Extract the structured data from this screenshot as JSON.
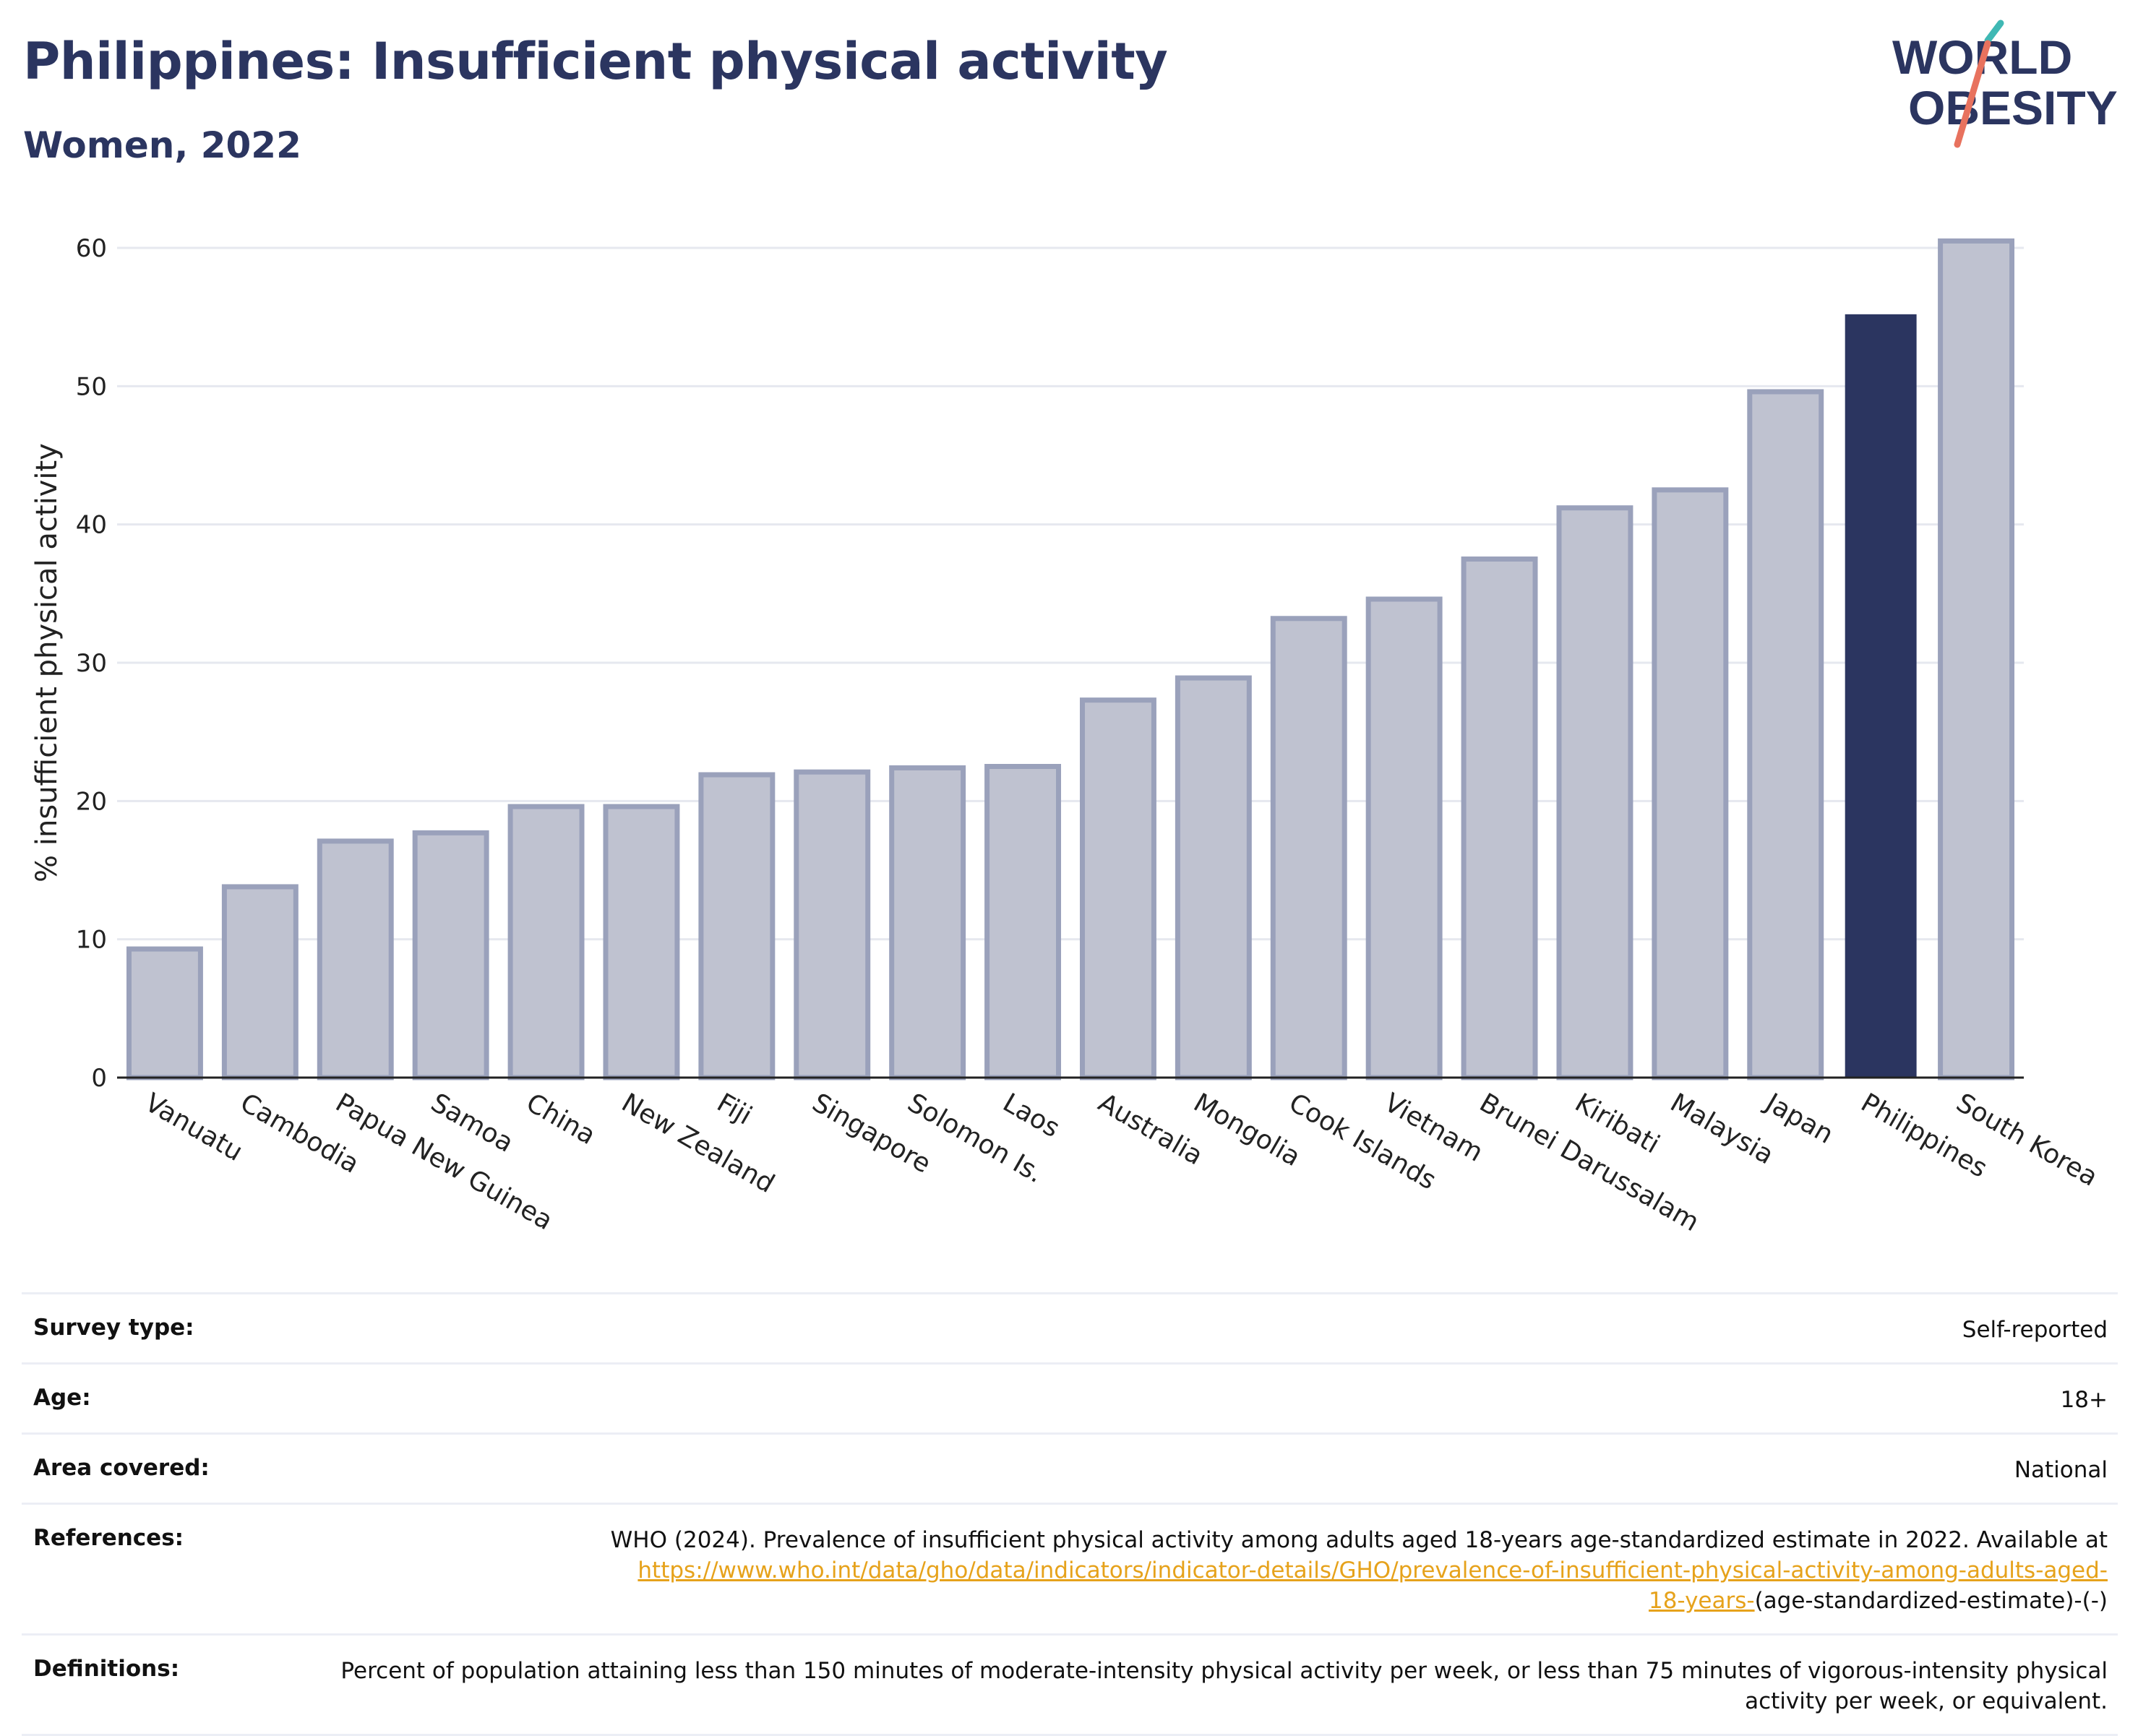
{
  "header": {
    "title": "Philippines: Insufficient physical activity",
    "subtitle": "Women, 2022"
  },
  "logo": {
    "line1": "WORLD",
    "line2": "OBESITY",
    "accent_teal": "#3fb8b4",
    "accent_coral": "#e8725e"
  },
  "colors": {
    "bar_default_fill": "#bfc2d0",
    "bar_default_stroke": "#9aa1bb",
    "bar_highlight": "#2b3560",
    "grid": "#e6e8ef",
    "axis": "#222222"
  },
  "chart_data": {
    "type": "bar",
    "ylabel": "% insufficient physical activity",
    "ylim": [
      0,
      62
    ],
    "yticks": [
      0,
      10,
      20,
      30,
      40,
      50,
      60
    ],
    "grid": true,
    "highlight": "Philippines",
    "categories": [
      "Vanuatu",
      "Cambodia",
      "Papua New Guinea",
      "Samoa",
      "China",
      "New Zealand",
      "Fiji",
      "Singapore",
      "Solomon Is.",
      "Laos",
      "Australia",
      "Mongolia",
      "Cook Islands",
      "Vietnam",
      "Brunei Darussalam",
      "Kiribati",
      "Malaysia",
      "Japan",
      "Philippines",
      "South Korea"
    ],
    "values": [
      9.3,
      13.8,
      17.1,
      17.7,
      19.6,
      19.6,
      21.9,
      22.1,
      22.4,
      22.5,
      27.3,
      28.9,
      33.2,
      34.6,
      37.5,
      41.2,
      42.5,
      49.6,
      55.2,
      60.5
    ]
  },
  "meta": {
    "rows": [
      {
        "key": "Survey type:",
        "value": "Self-reported"
      },
      {
        "key": "Age:",
        "value": "18+"
      },
      {
        "key": "Area covered:",
        "value": "National"
      }
    ],
    "references": {
      "key": "References:",
      "line1": "WHO (2024). Prevalence of insufficient physical activity among adults aged 18-years age-standardized estimate in 2022. Available at",
      "link_part1": "https://www.who.int/data/gho/data/indicators/indicator-details/GHO/prevalence-of-insufficient-physical-activity-among-adults-aged-",
      "link_part2": "18-years-",
      "suffix": "(age-standardized-estimate)-(-)"
    },
    "definitions": {
      "key": "Definitions:",
      "value": "Percent of population attaining less than 150 minutes of moderate-intensity physical activity per week, or less than 75 minutes of vigorous-intensity physical activity per week, or equivalent."
    }
  }
}
